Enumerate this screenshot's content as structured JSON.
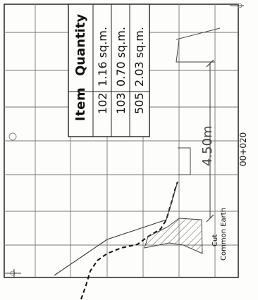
{
  "quantity_table": {
    "headers": {
      "item": "Item",
      "quantity": "Quantity"
    },
    "rows": [
      {
        "item": "102",
        "quantity": "1.16 sq.m."
      },
      {
        "item": "103",
        "quantity": "0.70 sq.m."
      },
      {
        "item": "505",
        "quantity": "2.03 sq.m."
      }
    ]
  },
  "dimension_label": "4.50m",
  "station_label": "00+020",
  "cut_label": {
    "line1": "Cut",
    "line2": "Common Earth"
  },
  "colors": {
    "ink": "#111111",
    "grid": "#777777",
    "hatch": "#555555"
  }
}
